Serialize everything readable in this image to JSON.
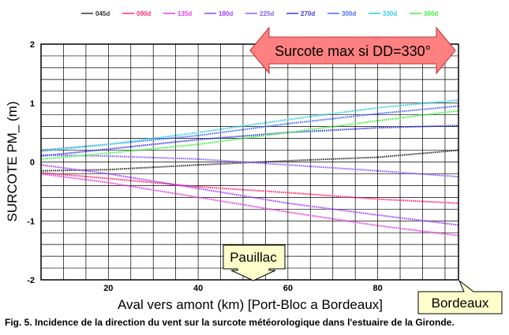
{
  "chart_data": {
    "type": "line",
    "xlabel": "Aval vers amont (km) [Port-Bloc a Bordeaux]",
    "ylabel": "SURCOTE PM_ (m)",
    "xlim": [
      5,
      98
    ],
    "ylim": [
      -2,
      2
    ],
    "xticks": [
      "20",
      "40",
      "60",
      "80"
    ],
    "yticks": [
      "2",
      "1",
      "0",
      "-1",
      "-2"
    ],
    "grid": true,
    "legend_position": "top",
    "series": [
      {
        "name": "045d",
        "color": "#333333",
        "x": [
          5,
          20,
          40,
          60,
          80,
          98
        ],
        "values": [
          -0.15,
          -0.13,
          -0.05,
          0.02,
          0.08,
          0.2
        ]
      },
      {
        "name": "090d",
        "color": "#ff2a6d",
        "x": [
          5,
          20,
          40,
          60,
          80,
          98
        ],
        "values": [
          -0.18,
          -0.28,
          -0.42,
          -0.52,
          -0.63,
          -0.7
        ]
      },
      {
        "name": "135d",
        "color": "#e040e0",
        "x": [
          5,
          20,
          40,
          60,
          80,
          98
        ],
        "values": [
          -0.2,
          -0.35,
          -0.6,
          -0.85,
          -1.08,
          -1.25
        ]
      },
      {
        "name": "180d",
        "color": "#a040ff",
        "x": [
          5,
          20,
          40,
          60,
          80,
          98
        ],
        "values": [
          -0.05,
          -0.2,
          -0.45,
          -0.7,
          -0.9,
          -1.07
        ]
      },
      {
        "name": "225d",
        "color": "#8a5aff",
        "x": [
          5,
          20,
          40,
          60,
          80,
          98
        ],
        "values": [
          0.12,
          0.1,
          0.05,
          -0.05,
          -0.15,
          -0.25
        ]
      },
      {
        "name": "270d",
        "color": "#3a3adf",
        "x": [
          5,
          20,
          40,
          60,
          80,
          98
        ],
        "values": [
          0.1,
          0.22,
          0.38,
          0.5,
          0.58,
          0.62
        ]
      },
      {
        "name": "300d",
        "color": "#4a6aff",
        "x": [
          5,
          20,
          40,
          60,
          80,
          98
        ],
        "values": [
          0.2,
          0.3,
          0.45,
          0.65,
          0.82,
          0.95
        ]
      },
      {
        "name": "330d",
        "color": "#33ccdd",
        "x": [
          5,
          20,
          40,
          60,
          80,
          98
        ],
        "values": [
          0.18,
          0.3,
          0.5,
          0.72,
          0.92,
          1.05
        ]
      },
      {
        "name": "360d",
        "color": "#44ee44",
        "x": [
          5,
          20,
          40,
          60,
          80,
          98
        ],
        "values": [
          0.05,
          0.15,
          0.3,
          0.5,
          0.7,
          0.87
        ]
      }
    ],
    "annotations": [
      {
        "text": "Surcote max si DD=330°",
        "x": 61,
        "y": 1.9,
        "fill": "#ff8080",
        "border": "#c03030"
      },
      {
        "text": "Pauillac",
        "x": 50,
        "y": -1.65,
        "fill": "#ffffcc",
        "border": "#000000"
      },
      {
        "text": "Bordeaux",
        "x": 98,
        "y": -2.35,
        "fill": "#ffffcc",
        "border": "#000000"
      }
    ]
  },
  "caption": "Fig. 5. Incidence de la direction du vent sur la surcote météorologique dans l'estuaire de la Gironde."
}
